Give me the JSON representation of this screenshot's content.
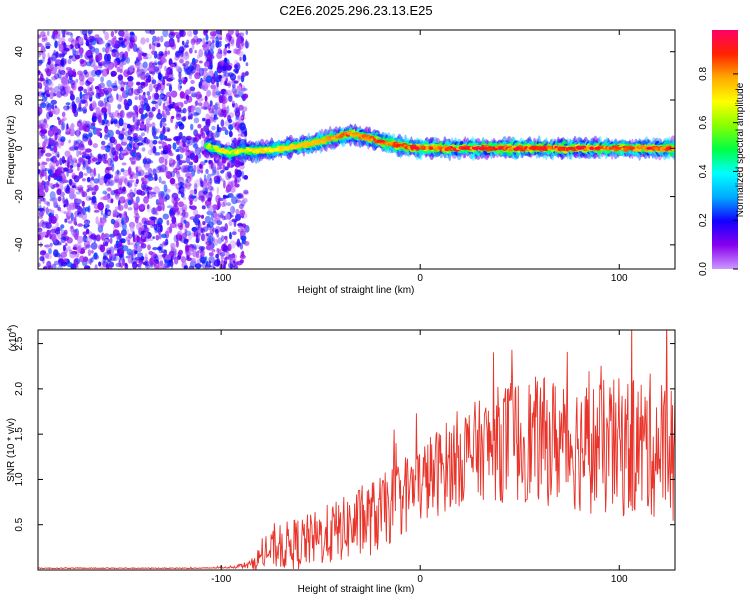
{
  "chart_data": [
    {
      "type": "heatmap",
      "title": "C2E6.2025.296.23.13.E25",
      "xlabel": "Height of straight line (km)",
      "ylabel": "Frequency (Hz)",
      "xlim": [
        -192,
        128
      ],
      "ylim": [
        -50,
        49
      ],
      "xticks": [
        -100,
        0,
        100
      ],
      "yticks": [
        -40,
        -20,
        0,
        20,
        40
      ],
      "colorbar": {
        "label": "Normalized spectral amplitude",
        "range": [
          0,
          0.98
        ],
        "ticks": [
          0.0,
          0.2,
          0.4,
          0.6,
          0.8
        ],
        "colors": [
          "#cc99ff",
          "#8800ee",
          "#1100ff",
          "#00aaff",
          "#00ffff",
          "#00ff44",
          "#88ff00",
          "#ffff00",
          "#ffaa00",
          "#ff2200",
          "#ff0066"
        ]
      },
      "noise_region": {
        "x_range": [
          -192,
          -90
        ],
        "amplitude_range": [
          0.0,
          0.15
        ]
      },
      "signal_track": {
        "x": [
          -107,
          -95,
          -90,
          -80,
          -70,
          -60,
          -50,
          -40,
          -35,
          -30,
          -25,
          -20,
          -10,
          0,
          10,
          20,
          30,
          40,
          50,
          60,
          70,
          80,
          90,
          100,
          110,
          120,
          128
        ],
        "frequency": [
          1,
          -2,
          -1,
          -1,
          0,
          1,
          3,
          5,
          6,
          5,
          4,
          3,
          1,
          0,
          0,
          0,
          0,
          0,
          0,
          0,
          0,
          0,
          0,
          0,
          0,
          0,
          0
        ],
        "peak_amplitude": [
          0.45,
          0.55,
          0.6,
          0.65,
          0.7,
          0.75,
          0.8,
          0.85,
          0.9,
          0.85,
          0.85,
          0.9,
          0.9,
          0.95,
          0.95,
          0.95,
          0.95,
          0.95,
          0.95,
          0.95,
          0.95,
          0.95,
          0.9,
          0.9,
          0.9,
          0.9,
          0.9
        ]
      }
    },
    {
      "type": "line",
      "xlabel": "Height of straight line (km)",
      "ylabel": "SNR (10 * v/v)",
      "yscale_label": "(x10",
      "yscale_exponent": "4",
      "xlim": [
        -192,
        128
      ],
      "ylim": [
        0,
        2.65
      ],
      "xticks": [
        -100,
        0,
        100
      ],
      "yticks": [
        0.5,
        1.0,
        1.5,
        2.0,
        2.5
      ],
      "series": [
        {
          "name": "SNR",
          "color": "#e8342a",
          "x": [
            -192,
            -170,
            -150,
            -130,
            -110,
            -95,
            -85,
            -80,
            -75,
            -70,
            -65,
            -60,
            -55,
            -50,
            -45,
            -40,
            -35,
            -30,
            -25,
            -20,
            -15,
            -10,
            -5,
            0,
            5,
            10,
            15,
            20,
            25,
            30,
            35,
            40,
            45,
            50,
            55,
            60,
            65,
            70,
            75,
            80,
            85,
            90,
            95,
            100,
            105,
            110,
            115,
            120,
            125,
            128
          ],
          "mean": [
            0.02,
            0.02,
            0.02,
            0.02,
            0.02,
            0.03,
            0.06,
            0.15,
            0.22,
            0.25,
            0.28,
            0.3,
            0.33,
            0.36,
            0.4,
            0.44,
            0.48,
            0.52,
            0.57,
            0.62,
            0.7,
            0.8,
            0.88,
            0.95,
            1.02,
            1.1,
            1.18,
            1.25,
            1.3,
            1.33,
            1.36,
            1.4,
            1.42,
            1.43,
            1.44,
            1.43,
            1.42,
            1.42,
            1.4,
            1.38,
            1.36,
            1.35,
            1.34,
            1.35,
            1.36,
            1.37,
            1.38,
            1.35,
            1.35,
            1.3
          ],
          "spread": [
            0.005,
            0.005,
            0.005,
            0.005,
            0.005,
            0.01,
            0.05,
            0.15,
            0.2,
            0.25,
            0.28,
            0.3,
            0.3,
            0.32,
            0.35,
            0.35,
            0.38,
            0.4,
            0.42,
            0.42,
            0.42,
            0.45,
            0.45,
            0.45,
            0.48,
            0.5,
            0.5,
            0.55,
            0.55,
            0.55,
            0.6,
            0.65,
            0.7,
            0.7,
            0.7,
            0.7,
            0.72,
            0.72,
            0.72,
            0.75,
            0.75,
            0.75,
            0.78,
            0.78,
            0.8,
            0.8,
            0.8,
            0.8,
            0.8,
            0.8
          ]
        }
      ]
    }
  ]
}
